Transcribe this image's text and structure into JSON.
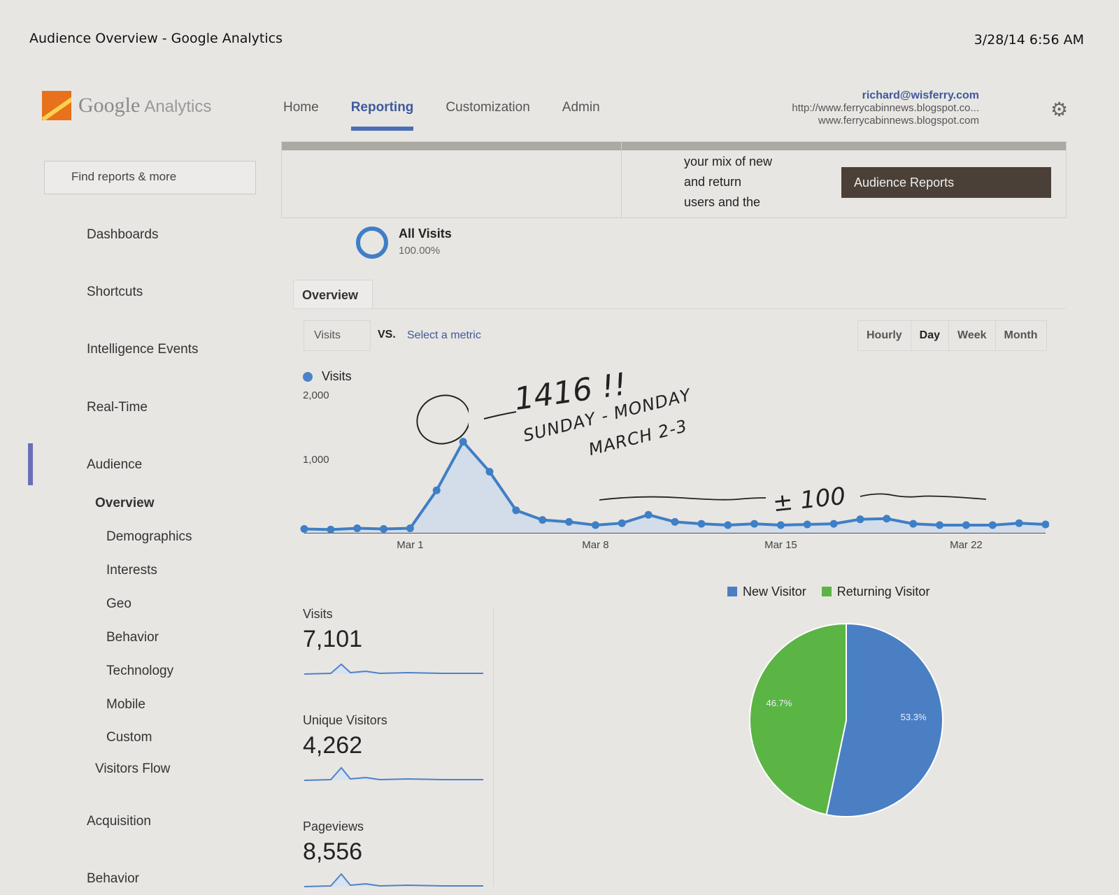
{
  "print_header": {
    "title": "Audience Overview - Google Analytics",
    "datetime": "3/28/14 6:56 AM"
  },
  "logo": {
    "brand": "Google",
    "product": "Analytics"
  },
  "topnav": {
    "tabs": [
      {
        "label": "Home"
      },
      {
        "label": "Reporting"
      },
      {
        "label": "Customization"
      },
      {
        "label": "Admin"
      }
    ]
  },
  "account": {
    "email": "richard@wisferry.com",
    "property": "http://www.ferrycabinnews.blogspot.co...",
    "view": "www.ferrycabinnews.blogspot.com"
  },
  "search": {
    "placeholder": "Find reports & more"
  },
  "sidebar": {
    "sections": [
      "Dashboards",
      "Shortcuts",
      "Intelligence Events",
      "Real-Time",
      "Audience"
    ],
    "audience_items": [
      "Overview",
      "Demographics",
      "Interests",
      "Geo",
      "Behavior",
      "Technology",
      "Mobile",
      "Custom",
      "Visitors Flow"
    ],
    "lower_sections": [
      "Acquisition",
      "Behavior"
    ]
  },
  "banner": {
    "bullet_lines": [
      "your mix of new",
      "and return",
      "users and the"
    ],
    "button": "Audience Reports"
  },
  "segment": {
    "name": "All Visits",
    "percent": "100.00%"
  },
  "overview_tab": "Overview",
  "metric_select": {
    "metric": "Visits",
    "vs": "VS.",
    "select": "Select a metric"
  },
  "granularity": [
    "Hourly",
    "Day",
    "Week",
    "Month"
  ],
  "chart_data": {
    "type": "line",
    "title": "",
    "series": [
      {
        "name": "Visits",
        "values": [
          60,
          50,
          70,
          60,
          70,
          660,
          1416,
          950,
          350,
          200,
          170,
          120,
          150,
          280,
          170,
          140,
          120,
          140,
          120,
          130,
          140,
          210,
          220,
          140,
          120,
          120,
          120,
          150,
          130
        ]
      }
    ],
    "ylim": [
      0,
      2000
    ],
    "yticks": [
      "2,000",
      "1,000"
    ],
    "xticks": [
      "Mar 1",
      "Mar 8",
      "Mar 15",
      "Mar 22"
    ],
    "xtick_index": [
      4,
      11,
      18,
      25
    ]
  },
  "annotations": {
    "peak": "1416 !!",
    "days": "SUNDAY - MONDAY",
    "date": "MARCH 2-3",
    "baseline": "± 100"
  },
  "stats": [
    {
      "label": "Visits",
      "value": "7,101"
    },
    {
      "label": "Unique Visitors",
      "value": "4,262"
    },
    {
      "label": "Pageviews",
      "value": "8,556"
    }
  ],
  "pie": {
    "legend": [
      {
        "label": "New Visitor",
        "color": "#4a7fc4"
      },
      {
        "label": "Returning Visitor",
        "color": "#5bb544"
      }
    ],
    "slices": [
      {
        "label": "53.3%",
        "value": 53.3,
        "color": "#4a7fc4"
      },
      {
        "label": "46.7%",
        "value": 46.7,
        "color": "#5bb544"
      }
    ]
  }
}
